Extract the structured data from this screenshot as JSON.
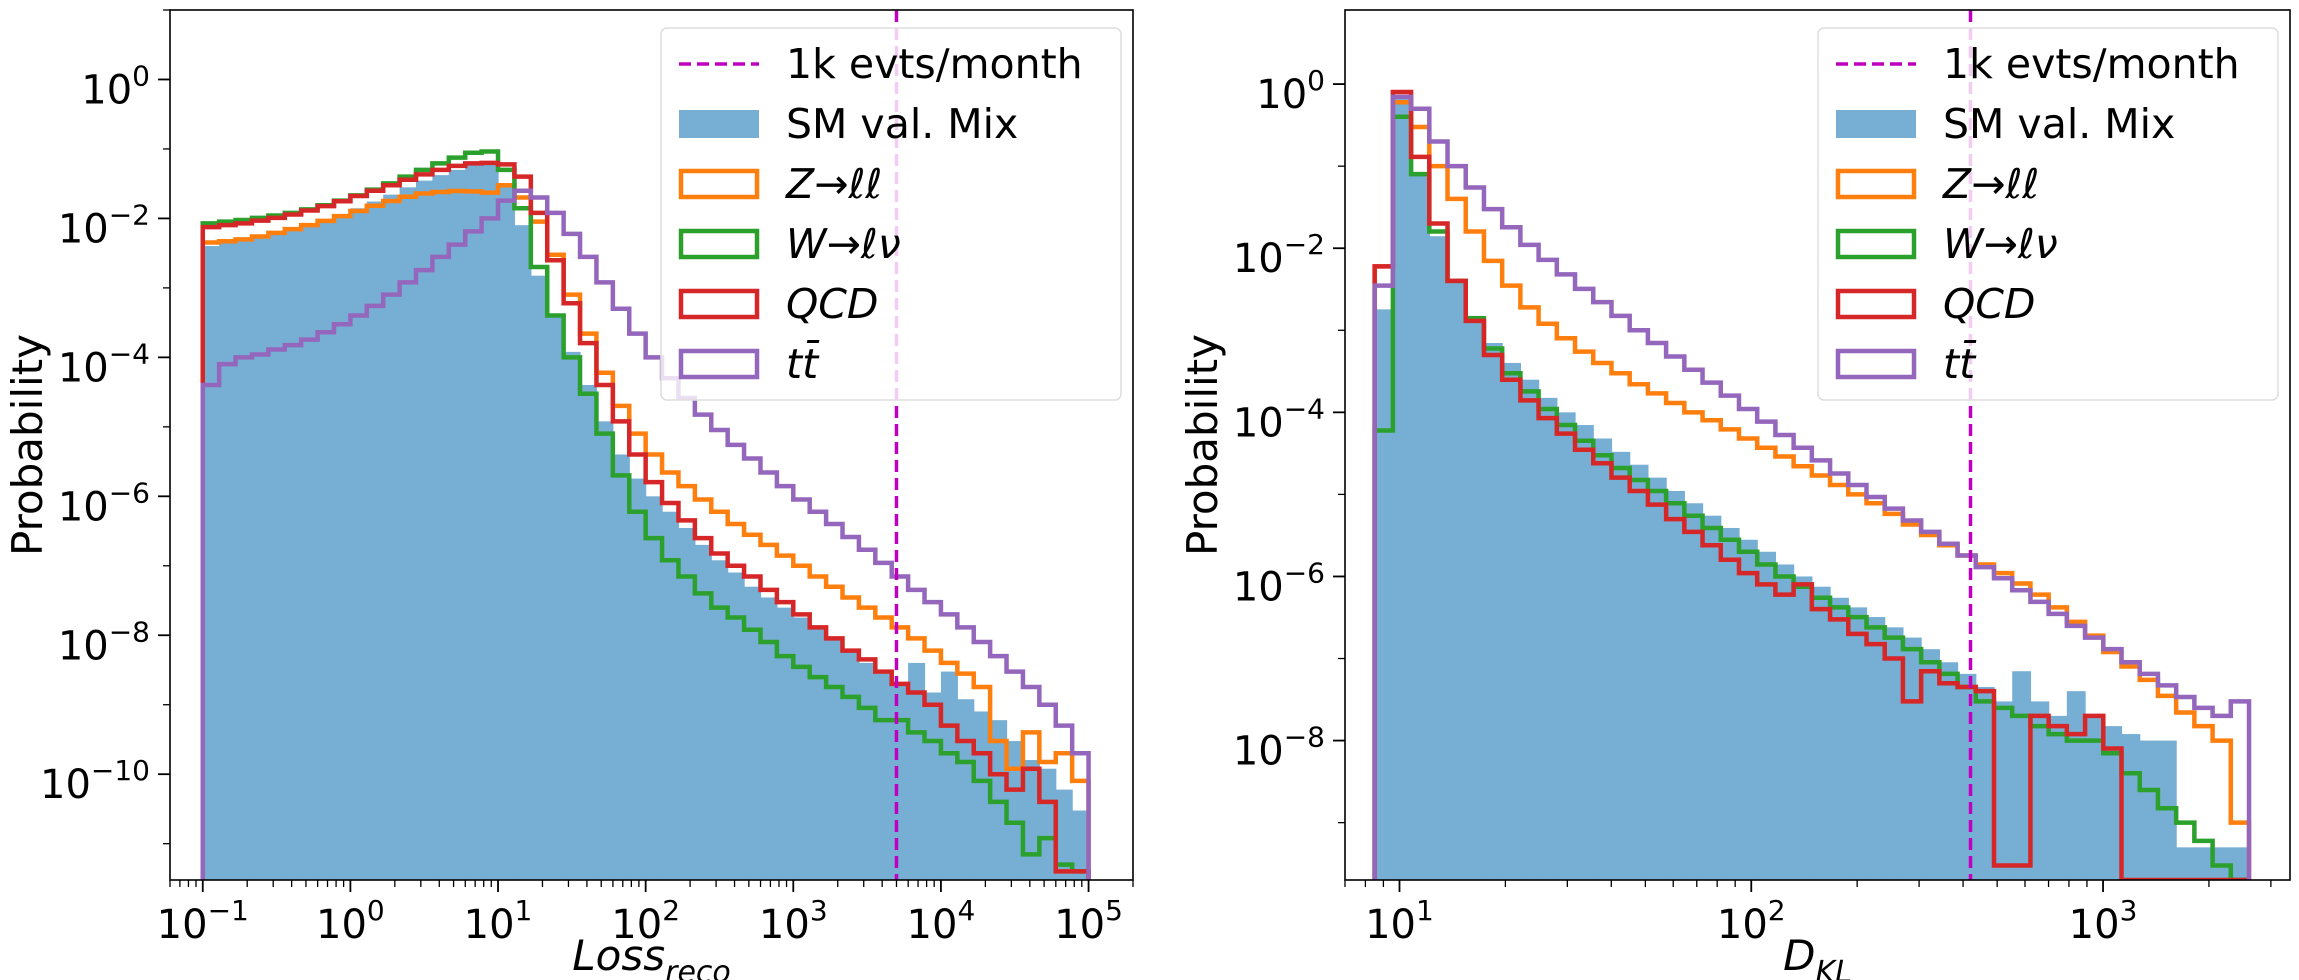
{
  "chart_data": [
    {
      "type": "histogram",
      "ylabel": "Probability",
      "xlabel": {
        "base": "Loss",
        "sub": "reco"
      },
      "xscale": "log",
      "yscale": "log",
      "xlim": [
        0.06,
        200000
      ],
      "ylim": [
        3e-12,
        10
      ],
      "x_ticks": [
        {
          "value": 0.1,
          "base": "10",
          "exp": "−1"
        },
        {
          "value": 1,
          "base": "10",
          "exp": "0"
        },
        {
          "value": 10,
          "base": "10",
          "exp": "1"
        },
        {
          "value": 100,
          "base": "10",
          "exp": "2"
        },
        {
          "value": 1000,
          "base": "10",
          "exp": "3"
        },
        {
          "value": 10000,
          "base": "10",
          "exp": "4"
        },
        {
          "value": 100000,
          "base": "10",
          "exp": "5"
        }
      ],
      "y_ticks": [
        {
          "value": 1,
          "base": "10",
          "exp": "0"
        },
        {
          "value": 0.01,
          "base": "10",
          "exp": "−2"
        },
        {
          "value": 0.0001,
          "base": "10",
          "exp": "−4"
        },
        {
          "value": 1e-06,
          "base": "10",
          "exp": "−6"
        },
        {
          "value": 1e-08,
          "base": "10",
          "exp": "−8"
        },
        {
          "value": 1e-10,
          "base": "10",
          "exp": "−10"
        }
      ],
      "vline": {
        "x": 5000,
        "label": "1k evts/month",
        "color": "#bf00bf"
      },
      "legend_position": "top-right",
      "bins": {
        "min": 0.1,
        "max": 100000,
        "count": 54
      },
      "filled": {
        "name": "SM val. Mix",
        "color": "#77aed3",
        "values": [
          0.004,
          0.0045,
          0.005,
          0.0055,
          0.0062,
          0.007,
          0.008,
          0.0095,
          0.0115,
          0.014,
          0.0175,
          0.022,
          0.028,
          0.035,
          0.042,
          0.05,
          0.058,
          0.06,
          0.03,
          0.008,
          0.0015,
          0.0004,
          0.00012,
          4e-05,
          1.2e-05,
          4e-06,
          1.8e-06,
          1e-06,
          6e-07,
          3.5e-07,
          2e-07,
          1.2e-07,
          8e-08,
          5e-08,
          3.5e-08,
          2.5e-08,
          1.8e-08,
          1.3e-08,
          9e-09,
          6e-09,
          4e-09,
          2.8e-09,
          2e-09,
          4e-09,
          1.5e-09,
          3e-09,
          1.2e-09,
          8e-10,
          6e-10,
          3e-10,
          1.6e-10,
          1.2e-10,
          6e-11,
          3e-11
        ]
      },
      "series": [
        {
          "name": "Z→ℓℓ",
          "color": "#ff7f0e",
          "values": [
            0.0045,
            0.0047,
            0.005,
            0.0055,
            0.0062,
            0.007,
            0.008,
            0.0092,
            0.0108,
            0.0128,
            0.0152,
            0.0178,
            0.0205,
            0.0228,
            0.024,
            0.0248,
            0.0245,
            0.0235,
            0.03,
            0.02,
            0.009,
            0.003,
            0.0008,
            0.00022,
            6e-05,
            2e-05,
            8e-06,
            4e-06,
            2.2e-06,
            1.4e-06,
            9e-07,
            6e-07,
            4e-07,
            2.8e-07,
            2e-07,
            1.4e-07,
            1e-07,
            7e-08,
            5e-08,
            3.5e-08,
            2.5e-08,
            1.8e-08,
            1.3e-08,
            9e-09,
            6e-09,
            4e-09,
            2.8e-09,
            1.8e-09,
            3e-10,
            1.2e-10,
            4e-10,
            1.5e-10,
            2e-10,
            8e-11
          ]
        },
        {
          "name": "W→ℓν",
          "color": "#2ca02c",
          "values": [
            0.0085,
            0.009,
            0.0095,
            0.0102,
            0.011,
            0.012,
            0.0135,
            0.0155,
            0.018,
            0.0215,
            0.026,
            0.032,
            0.04,
            0.05,
            0.062,
            0.075,
            0.088,
            0.092,
            0.05,
            0.014,
            0.002,
            0.0004,
            0.0001,
            3e-05,
            8e-06,
            2e-06,
            6e-07,
            2.5e-07,
            1.2e-07,
            7e-08,
            4e-08,
            2.5e-08,
            1.8e-08,
            1.2e-08,
            8e-09,
            5e-09,
            3.5e-09,
            2.5e-09,
            1.8e-09,
            1.3e-09,
            9e-10,
            6e-10,
            6e-10,
            4e-10,
            3e-10,
            2e-10,
            1.5e-10,
            8e-11,
            4e-11,
            2e-11,
            7e-12,
            1.2e-11,
            5e-12,
            4e-12
          ]
        },
        {
          "name": "QCD",
          "color": "#d62728",
          "values": [
            0.0075,
            0.008,
            0.0085,
            0.0093,
            0.0102,
            0.0114,
            0.013,
            0.015,
            0.0177,
            0.021,
            0.025,
            0.03,
            0.036,
            0.043,
            0.05,
            0.057,
            0.062,
            0.063,
            0.06,
            0.04,
            0.012,
            0.0025,
            0.0006,
            0.00016,
            4e-05,
            1.2e-05,
            4e-06,
            1.6e-06,
            8e-07,
            4.5e-07,
            2.5e-07,
            1.5e-07,
            1e-07,
            7e-08,
            4.5e-08,
            3e-08,
            2e-08,
            1.3e-08,
            9e-09,
            6e-09,
            4.5e-09,
            3e-09,
            2e-09,
            1.5e-09,
            1e-09,
            5e-10,
            3e-10,
            2e-10,
            1e-10,
            6e-11,
            1.2e-10,
            4e-11,
            4e-12,
            4e-12
          ]
        },
        {
          "name": "tt̄",
          "color": "#9467bd",
          "values": [
            4e-05,
            8e-05,
            0.0001,
            0.00011,
            0.00013,
            0.00015,
            0.00018,
            0.00023,
            0.0003,
            0.0004,
            0.00055,
            0.0008,
            0.0012,
            0.0018,
            0.0028,
            0.0042,
            0.0065,
            0.01,
            0.018,
            0.025,
            0.02,
            0.012,
            0.006,
            0.0028,
            0.0012,
            0.0005,
            0.00022,
            0.0001,
            5e-05,
            2.6e-05,
            1.5e-05,
            9e-06,
            5.5e-06,
            3.5e-06,
            2.2e-06,
            1.4e-06,
            9e-07,
            6e-07,
            4e-07,
            2.6e-07,
            1.7e-07,
            1.1e-07,
            7e-08,
            4.5e-08,
            3e-08,
            2e-08,
            1.3e-08,
            8e-09,
            5e-09,
            3e-09,
            1.8e-09,
            1e-09,
            5e-10,
            2e-10
          ]
        }
      ]
    },
    {
      "type": "histogram",
      "ylabel": "Probability",
      "xlabel": {
        "base": "D",
        "sub": "KL"
      },
      "xscale": "log",
      "yscale": "log",
      "xlim": [
        7,
        3400
      ],
      "ylim": [
        2e-10,
        8
      ],
      "x_ticks": [
        {
          "value": 10,
          "base": "10",
          "exp": "1"
        },
        {
          "value": 100,
          "base": "10",
          "exp": "2"
        },
        {
          "value": 1000,
          "base": "10",
          "exp": "3"
        }
      ],
      "y_ticks": [
        {
          "value": 1,
          "base": "10",
          "exp": "0"
        },
        {
          "value": 0.01,
          "base": "10",
          "exp": "−2"
        },
        {
          "value": 0.0001,
          "base": "10",
          "exp": "−4"
        },
        {
          "value": 1e-06,
          "base": "10",
          "exp": "−6"
        },
        {
          "value": 1e-08,
          "base": "10",
          "exp": "−8"
        }
      ],
      "vline": {
        "x": 420,
        "label": "1k evts/month",
        "color": "#bf00bf"
      },
      "legend_position": "top-right",
      "bins": {
        "min": 8.5,
        "max": 2600,
        "count": 48
      },
      "filled": {
        "name": "SM val. Mix",
        "color": "#77aed3",
        "values": [
          0.0018,
          0.7,
          0.08,
          0.014,
          0.004,
          0.0015,
          0.0007,
          0.0004,
          0.00025,
          0.00015,
          0.0001,
          7e-05,
          4.8e-05,
          3.3e-05,
          2.3e-05,
          1.6e-05,
          1.1e-05,
          7.8e-06,
          5.5e-06,
          3.9e-06,
          2.8e-06,
          2e-06,
          1.4e-06,
          1e-06,
          7.5e-07,
          5.5e-07,
          4.2e-07,
          3.2e-07,
          2.4e-07,
          1.8e-07,
          1.3e-07,
          9e-08,
          6.5e-08,
          4.5e-08,
          3e-08,
          7e-08,
          3e-08,
          2e-08,
          4e-08,
          2e-08,
          1.5e-08,
          1.2e-08,
          1e-08,
          1e-08,
          5e-10,
          5e-10,
          5e-10,
          5e-10
        ]
      },
      "series": [
        {
          "name": "Z→ℓℓ",
          "color": "#ff7f0e",
          "values": [
            0.006,
            0.6,
            0.3,
            0.1,
            0.04,
            0.016,
            0.007,
            0.0035,
            0.0019,
            0.0012,
            0.0008,
            0.00055,
            0.0004,
            0.0003,
            0.00022,
            0.00017,
            0.00013,
            0.0001,
            8e-05,
            6.2e-05,
            4.8e-05,
            3.7e-05,
            2.9e-05,
            2.2e-05,
            1.7e-05,
            1.3e-05,
            1e-05,
            7.8e-06,
            5.8e-06,
            4.3e-06,
            3.2e-06,
            2.4e-06,
            1.8e-06,
            1.4e-06,
            1.1e-06,
            8.2e-07,
            6e-07,
            4.2e-07,
            2.8e-07,
            1.9e-07,
            1.2e-07,
            8e-08,
            5.5e-08,
            3.5e-08,
            2.2e-08,
            1.5e-08,
            1e-08,
            1e-09
          ]
        },
        {
          "name": "W→ℓν",
          "color": "#2ca02c",
          "values": [
            6e-05,
            0.4,
            0.08,
            0.016,
            0.004,
            0.0014,
            0.0006,
            0.0003,
            0.00018,
            0.00011,
            7e-05,
            4.5e-05,
            3e-05,
            2.1e-05,
            1.5e-05,
            1.1e-05,
            7.8e-06,
            5.5e-06,
            3.9e-06,
            2.8e-06,
            2e-06,
            1.4e-06,
            1e-06,
            7.5e-07,
            5.5e-07,
            4.2e-07,
            3.2e-07,
            2.4e-07,
            1.8e-07,
            1.3e-07,
            9e-08,
            6.5e-08,
            4.5e-08,
            3e-08,
            2.5e-08,
            2e-08,
            1.5e-08,
            1.2e-08,
            1e-08,
            1e-08,
            7e-09,
            4e-09,
            2.5e-09,
            1.5e-09,
            1e-09,
            6e-10,
            3e-10,
            1e-10
          ]
        },
        {
          "name": "QCD",
          "color": "#d62728",
          "values": [
            0.006,
            0.8,
            0.13,
            0.02,
            0.004,
            0.0013,
            0.0005,
            0.00025,
            0.00014,
            8.5e-05,
            5.5e-05,
            3.5e-05,
            2.4e-05,
            1.6e-05,
            1.1e-05,
            7.5e-06,
            5e-06,
            3.5e-06,
            2.4e-06,
            1.6e-06,
            1.1e-06,
            8e-07,
            6e-07,
            8e-07,
            4e-07,
            3e-07,
            2e-07,
            1.5e-07,
            1e-07,
            3e-08,
            7e-08,
            5e-08,
            4.5e-08,
            4e-08,
            3e-10,
            3e-10,
            2e-08,
            1.5e-08,
            1.2e-08,
            2e-08,
            8e-09,
            1e-10,
            1e-10,
            1e-10,
            1e-10,
            1e-10,
            1e-10,
            1e-10
          ]
        },
        {
          "name": "tt̄",
          "color": "#9467bd",
          "values": [
            0.0035,
            0.7,
            0.5,
            0.2,
            0.1,
            0.055,
            0.03,
            0.018,
            0.011,
            0.0072,
            0.0048,
            0.0032,
            0.0022,
            0.0015,
            0.001,
            0.0007,
            0.00048,
            0.00033,
            0.00023,
            0.00016,
            0.00011,
            7.7e-05,
            5.3e-05,
            3.7e-05,
            2.6e-05,
            1.8e-05,
            1.3e-05,
            9.3e-06,
            6.7e-06,
            4.8e-06,
            3.5e-06,
            2.5e-06,
            1.8e-06,
            1.3e-06,
            9.5e-07,
            6.8e-07,
            4.9e-07,
            3.5e-07,
            2.5e-07,
            1.8e-07,
            1.3e-07,
            9e-08,
            6.5e-08,
            4.7e-08,
            3.4e-08,
            2.5e-08,
            2e-08,
            3e-08
          ]
        }
      ]
    }
  ]
}
